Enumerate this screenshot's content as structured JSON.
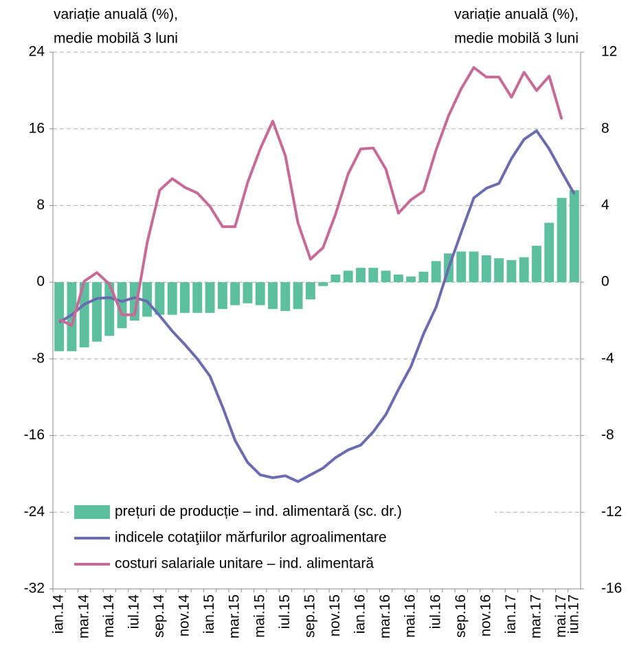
{
  "chart_data": {
    "type": "bar_line",
    "y_label": [
      "variație anuală (%),",
      "medie mobilă 3 luni"
    ],
    "y2_label": [
      "variație anuală (%),",
      "medie mobilă 3 luni"
    ],
    "categories": [
      "ian.14",
      null,
      "mar.14",
      null,
      "mai.14",
      null,
      "iul.14",
      null,
      "sep.14",
      null,
      "nov.14",
      null,
      "ian.15",
      null,
      "mar.15",
      null,
      "mai.15",
      null,
      "iul.15",
      null,
      "sep.15",
      null,
      "nov.15",
      null,
      "ian.16",
      null,
      "mar.16",
      null,
      "mai.16",
      null,
      "iul.16",
      null,
      "sep.16",
      null,
      "nov.16",
      null,
      "ian.17",
      null,
      "mar.17",
      null,
      "mai.17",
      "iun.17"
    ],
    "series": [
      {
        "name": "prețuri de producție – ind. alimentară (sc. dr.)",
        "type": "bar",
        "axis": "y2",
        "color": "#5cbf9e",
        "values": [
          -3.6,
          -3.6,
          -3.4,
          -3.1,
          -2.8,
          -2.4,
          -2.0,
          -1.8,
          -1.7,
          -1.7,
          -1.6,
          -1.6,
          -1.6,
          -1.4,
          -1.2,
          -1.1,
          -1.2,
          -1.4,
          -1.5,
          -1.4,
          -0.9,
          -0.2,
          0.4,
          0.6,
          0.75,
          0.75,
          0.6,
          0.4,
          0.3,
          0.55,
          1.1,
          1.5,
          1.6,
          1.6,
          1.4,
          1.25,
          1.15,
          1.3,
          1.9,
          3.1,
          4.4,
          4.8
        ]
      },
      {
        "name": "indicele cotaţiilor mărfurilor agroalimentare",
        "type": "line",
        "axis": "y",
        "color": "#6b6bb0",
        "values": [
          -4.2,
          -3.4,
          -2.3,
          -1.7,
          -1.6,
          -2.0,
          -1.6,
          -2.0,
          -3.5,
          -5.1,
          -6.5,
          -8.0,
          -9.8,
          -13.0,
          -16.5,
          -18.8,
          -20.1,
          -20.4,
          -20.2,
          -20.8,
          -20.1,
          -19.4,
          -18.3,
          -17.5,
          -17.0,
          -15.6,
          -13.8,
          -11.2,
          -8.8,
          -5.4,
          -2.6,
          1.5,
          5.2,
          8.8,
          9.8,
          10.3,
          12.9,
          14.9,
          15.8,
          13.9,
          11.5,
          9.2
        ]
      },
      {
        "name": "costuri salariale unitare – ind. alimentară",
        "type": "line",
        "axis": "y",
        "color": "#c86a98",
        "values": [
          -3.9,
          -4.5,
          0.1,
          1.0,
          -0.2,
          -3.4,
          -3.4,
          4.1,
          9.6,
          10.8,
          9.9,
          9.3,
          7.9,
          5.8,
          5.8,
          10.4,
          13.9,
          16.8,
          13.2,
          6.2,
          2.4,
          3.6,
          7.1,
          11.3,
          13.9,
          14.0,
          11.8,
          7.2,
          8.6,
          9.5,
          13.8,
          17.4,
          20.2,
          22.4,
          21.4,
          21.4,
          19.3,
          21.9,
          20.0,
          21.5,
          17.0,
          null
        ]
      }
    ],
    "ylim": [
      -32,
      24
    ],
    "yticks": [
      24,
      16,
      8,
      0,
      -8,
      -16,
      -24,
      -32
    ],
    "y2lim": [
      -16,
      12
    ],
    "y2ticks": [
      12,
      8,
      4,
      0,
      -4,
      -8,
      -12,
      -16
    ],
    "grid": true,
    "legend": "bottom-left"
  }
}
